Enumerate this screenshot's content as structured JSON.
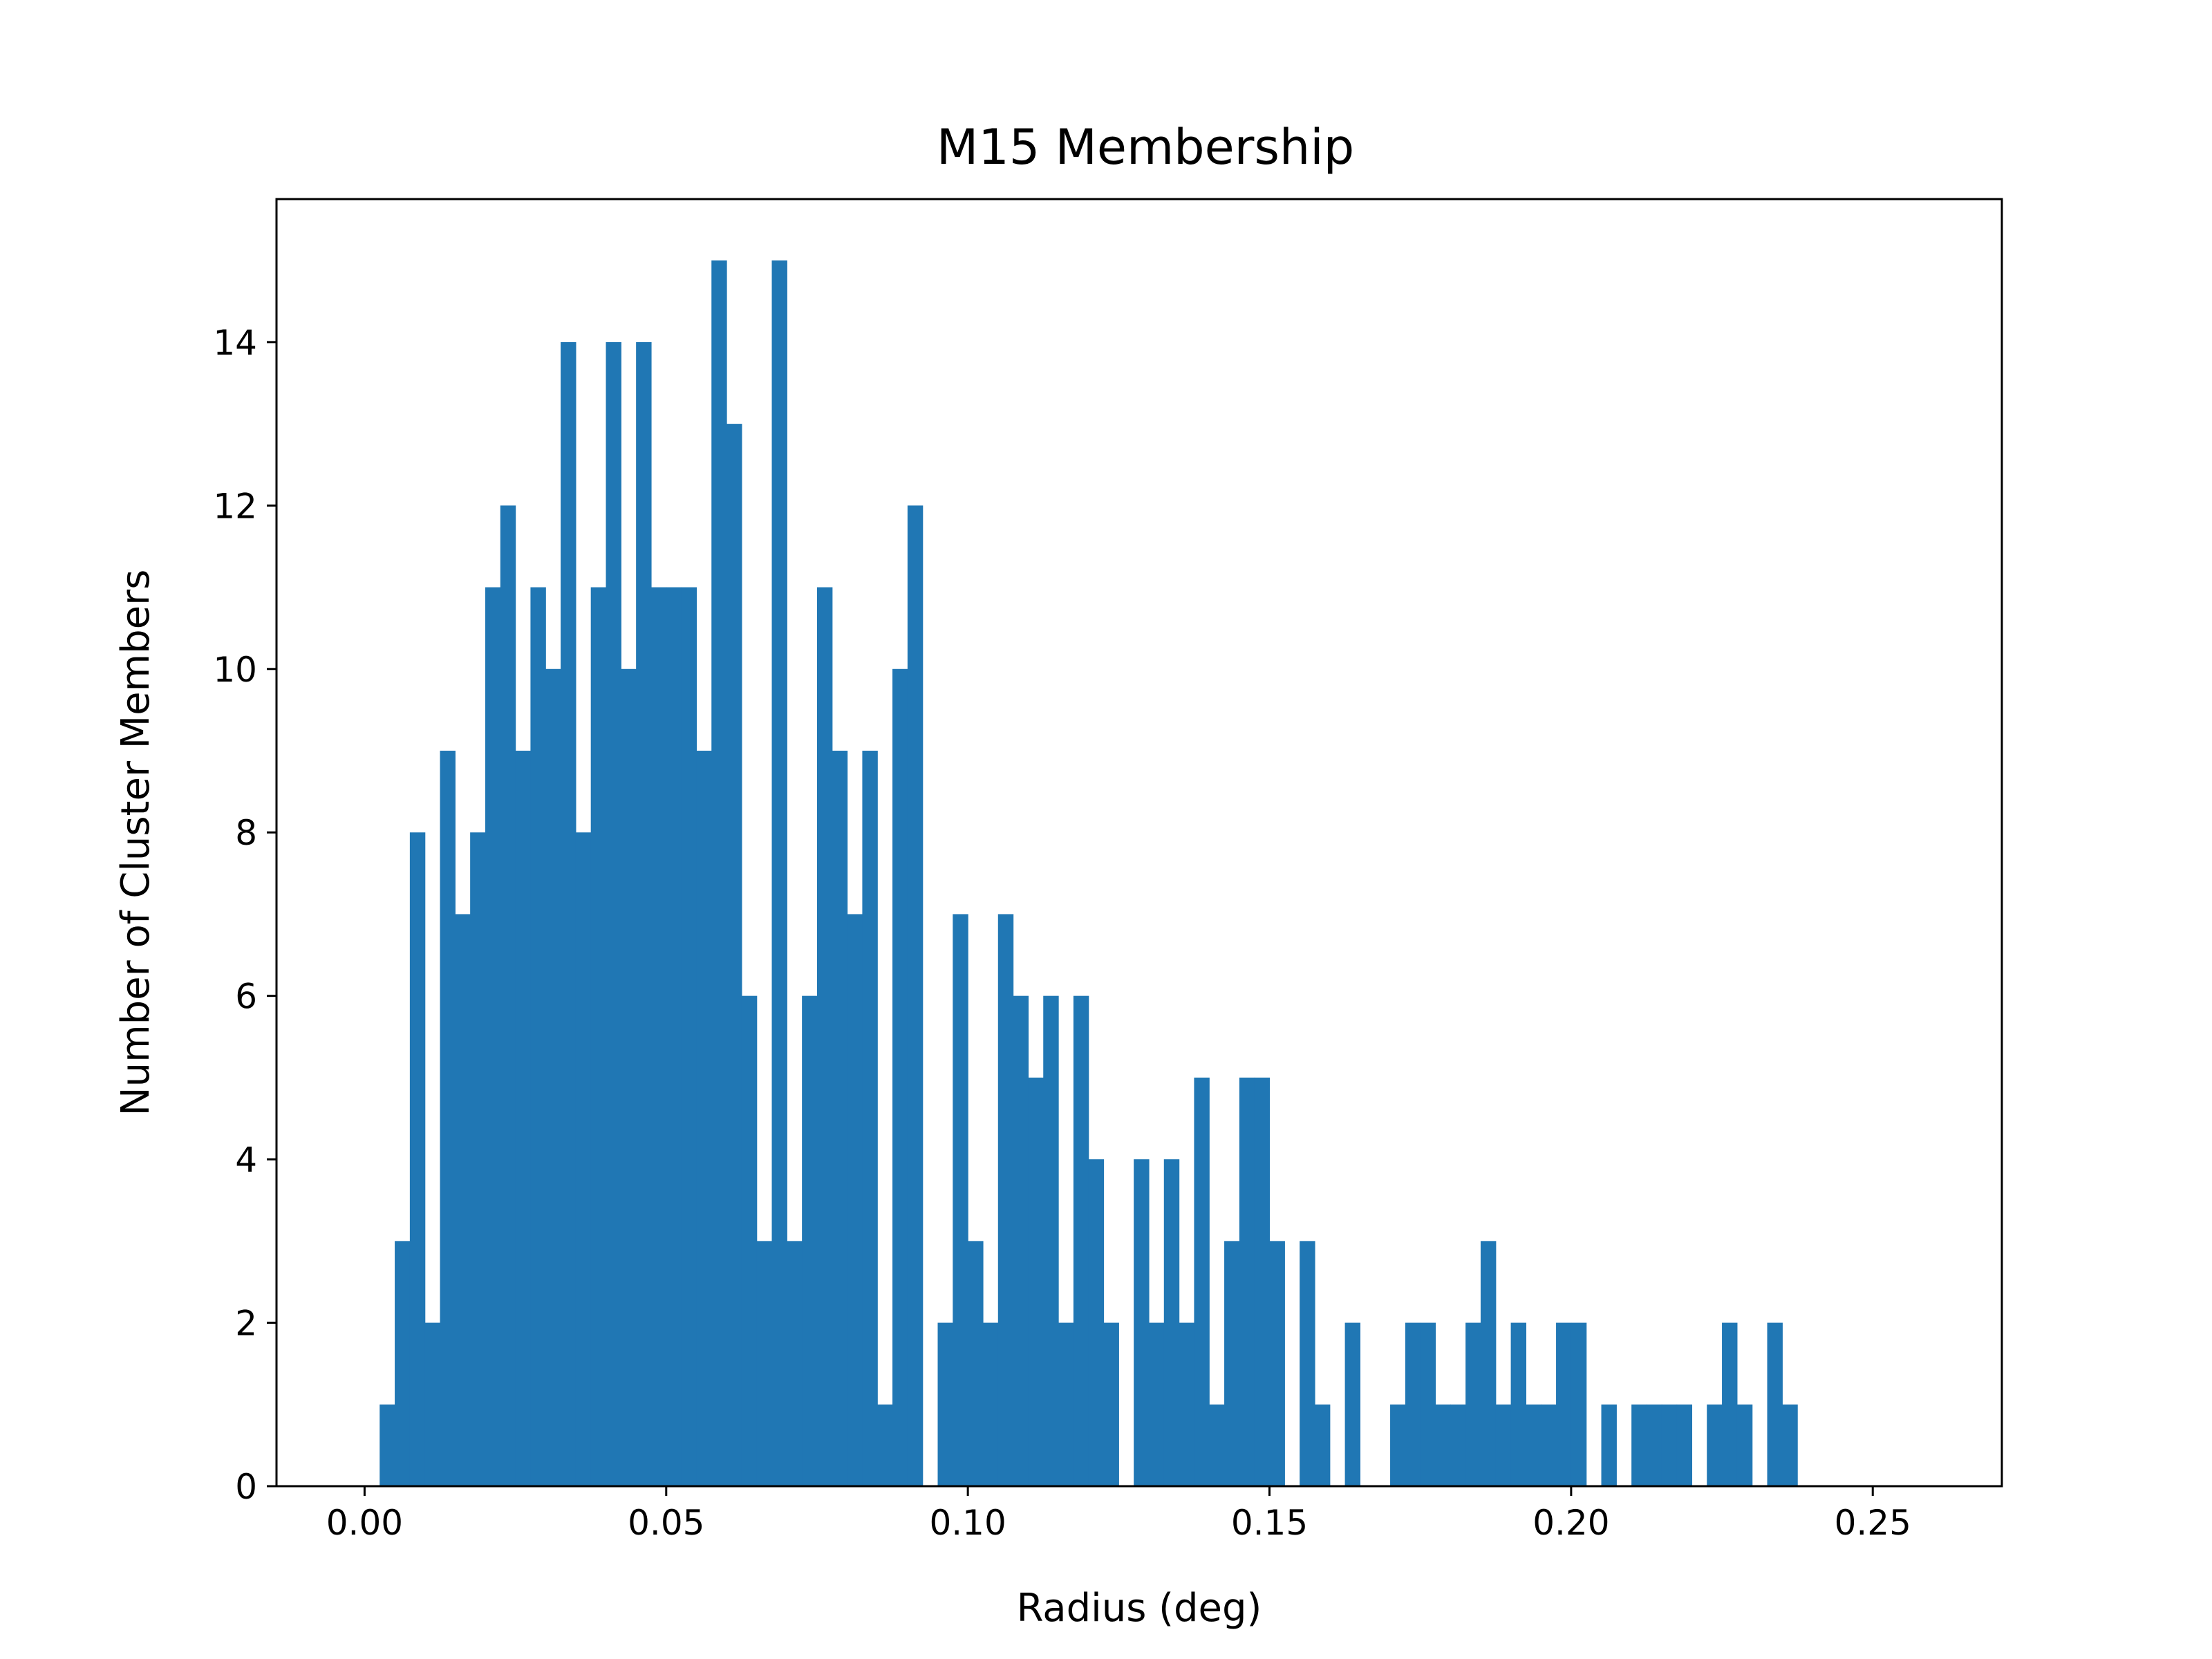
{
  "chart_data": {
    "type": "bar",
    "title": "M15 Membership",
    "xlabel": "Radius (deg)",
    "ylabel": "Number of Cluster Members",
    "xlim": [
      -0.0146,
      0.2714
    ],
    "ylim": [
      0,
      15.75
    ],
    "xticks": [
      "0.00",
      "0.05",
      "0.10",
      "0.15",
      "0.20",
      "0.25"
    ],
    "yticks": [
      "0",
      "2",
      "4",
      "6",
      "8",
      "10",
      "12",
      "14"
    ],
    "bin_width": 0.0025,
    "bin_start": 0.0025,
    "counts": [
      1,
      3,
      8,
      2,
      9,
      7,
      8,
      11,
      12,
      9,
      11,
      10,
      14,
      8,
      11,
      14,
      10,
      14,
      11,
      11,
      11,
      9,
      15,
      13,
      6,
      3,
      15,
      3,
      6,
      11,
      9,
      7,
      9,
      1,
      10,
      12,
      0,
      2,
      7,
      3,
      2,
      7,
      6,
      5,
      6,
      2,
      6,
      4,
      2,
      0,
      4,
      2,
      4,
      2,
      5,
      1,
      3,
      5,
      5,
      3,
      0,
      3,
      1,
      0,
      2,
      0,
      0,
      1,
      2,
      2,
      1,
      1,
      2,
      3,
      1,
      2,
      1,
      1,
      2,
      2,
      0,
      1,
      0,
      1,
      1,
      1,
      1,
      0,
      1,
      2,
      1,
      0,
      2,
      1
    ],
    "color": "#2077b4",
    "grid": false,
    "legend": "none"
  }
}
